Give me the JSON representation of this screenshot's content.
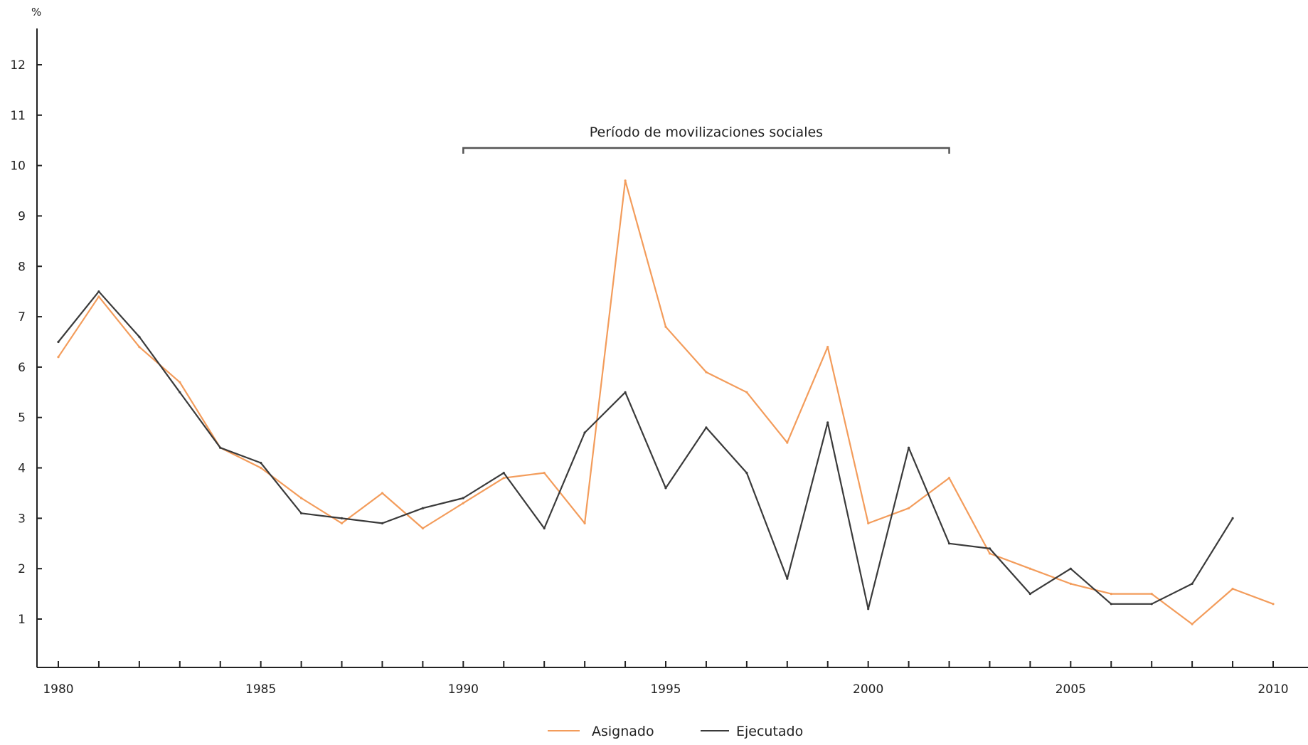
{
  "chart_data": {
    "type": "line",
    "title": "",
    "xlabel": "",
    "ylabel": "%",
    "x": [
      1980,
      1981,
      1982,
      1983,
      1984,
      1985,
      1986,
      1987,
      1988,
      1989,
      1990,
      1991,
      1992,
      1993,
      1994,
      1995,
      1996,
      1997,
      1998,
      1999,
      2000,
      2001,
      2002,
      2003,
      2004,
      2005,
      2006,
      2007,
      2008,
      2009,
      2010
    ],
    "xlim": [
      1980,
      2010
    ],
    "ylim": [
      0,
      12.8
    ],
    "x_ticks": [
      1980,
      1985,
      1990,
      1995,
      2000,
      2005,
      2010
    ],
    "y_ticks": [
      1,
      2,
      3,
      4,
      5,
      6,
      7,
      8,
      9,
      10,
      11,
      12
    ],
    "grid": false,
    "legend_position": "bottom",
    "series": [
      {
        "name": "Asignado",
        "color": "#f39c5b",
        "values": [
          6.2,
          7.4,
          6.4,
          5.7,
          4.4,
          4.0,
          3.4,
          2.9,
          3.5,
          2.8,
          3.3,
          3.8,
          3.9,
          2.9,
          9.7,
          6.8,
          5.9,
          5.5,
          4.5,
          6.4,
          2.9,
          3.2,
          3.8,
          2.3,
          2.0,
          1.7,
          1.5,
          1.5,
          0.9,
          1.6,
          1.3
        ]
      },
      {
        "name": "Ejecutado",
        "color": "#3a3a3a",
        "values": [
          6.5,
          7.5,
          6.6,
          5.5,
          4.4,
          4.1,
          3.1,
          3.0,
          2.9,
          3.2,
          3.4,
          3.9,
          2.8,
          4.7,
          5.5,
          3.6,
          4.8,
          3.9,
          1.8,
          4.9,
          1.2,
          4.4,
          2.5,
          2.4,
          1.5,
          2.0,
          1.3,
          1.3,
          1.7,
          3.0,
          null
        ]
      }
    ],
    "annotations": [
      {
        "text": "Período de movilizaciones sociales",
        "x_start": 1990,
        "x_end": 2002
      }
    ]
  }
}
